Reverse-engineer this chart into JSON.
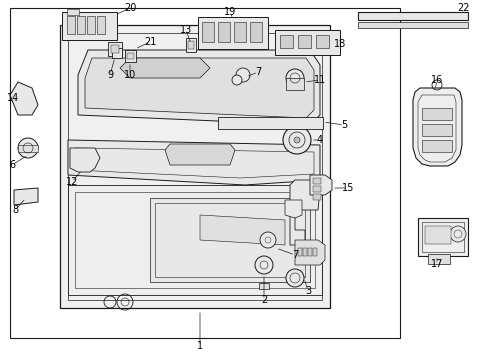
{
  "fig_width": 4.89,
  "fig_height": 3.6,
  "dpi": 100,
  "bg_color": "#ffffff",
  "line_color": "#1a1a1a",
  "text_color": "#000000",
  "font_size": 7.0,
  "border_lw": 1.0,
  "part_lw": 0.7
}
